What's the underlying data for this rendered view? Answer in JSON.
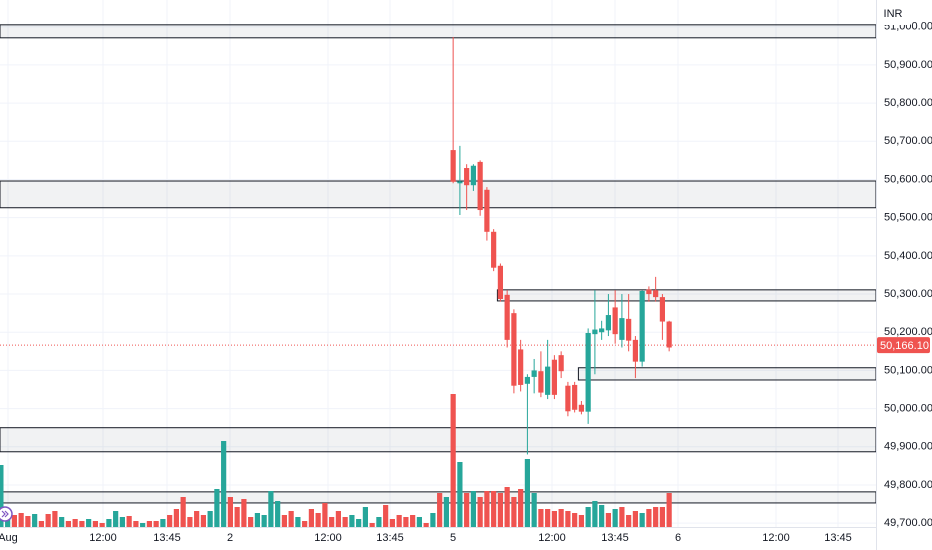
{
  "chart_data": {
    "type": "candlestick",
    "currency": "INR",
    "ylim": [
      49690,
      51070
    ],
    "yticks": [
      {
        "value": 51000,
        "label": "51,000.00"
      },
      {
        "value": 50900,
        "label": "50,900.00"
      },
      {
        "value": 50800,
        "label": "50,800.00"
      },
      {
        "value": 50700,
        "label": "50,700.00"
      },
      {
        "value": 50600,
        "label": "50,600.00"
      },
      {
        "value": 50500,
        "label": "50,500.00"
      },
      {
        "value": 50400,
        "label": "50,400.00"
      },
      {
        "value": 50300,
        "label": "50,300.00"
      },
      {
        "value": 50200,
        "label": "50,200.00"
      },
      {
        "value": 50100,
        "label": "50,100.00"
      },
      {
        "value": 50000,
        "label": "50,000.00"
      },
      {
        "value": 49900,
        "label": "49,900.00"
      },
      {
        "value": 49800,
        "label": "49,800.00"
      },
      {
        "value": 49700,
        "label": "49,700.00"
      }
    ],
    "xticks": [
      "Aug",
      "12:00",
      "13:45",
      "2",
      "12:00",
      "13:45",
      "5",
      "12:00",
      "13:45",
      "6",
      "12:00",
      "13:45"
    ],
    "last_price": {
      "value": 50166.1,
      "label": "50,166.10"
    },
    "up_color": "#26a69a",
    "down_color": "#ef5350",
    "grid": true,
    "candle_start": 67,
    "candles": [
      [
        50677,
        50973,
        50590,
        50594
      ],
      [
        50590,
        50688,
        50507,
        50595
      ],
      [
        50630,
        50640,
        50520,
        50585
      ],
      [
        50585,
        50640,
        50570,
        50636
      ],
      [
        50646,
        50650,
        50505,
        50520
      ],
      [
        50573,
        50580,
        50440,
        50463
      ],
      [
        50463,
        50470,
        50360,
        50369
      ],
      [
        50374,
        50380,
        50280,
        50287
      ],
      [
        50298,
        50310,
        50160,
        50180
      ],
      [
        50250,
        50260,
        50040,
        50060
      ],
      [
        50155,
        50180,
        50045,
        50062
      ],
      [
        50065,
        50090,
        49880,
        50083
      ],
      [
        50083,
        50130,
        50040,
        50100
      ],
      [
        50098,
        50150,
        50030,
        50042
      ],
      [
        50036,
        50180,
        50025,
        50110
      ],
      [
        50128,
        50140,
        50025,
        50036
      ],
      [
        50140,
        50150,
        50080,
        50098
      ],
      [
        50060,
        50070,
        49980,
        49993
      ],
      [
        50062,
        50070,
        49990,
        49997
      ],
      [
        50010,
        50020,
        49985,
        49992
      ],
      [
        49992,
        50210,
        49960,
        50198
      ],
      [
        50195,
        50310,
        50090,
        50207
      ],
      [
        50200,
        50230,
        50180,
        50210
      ],
      [
        50205,
        50300,
        50190,
        50245
      ],
      [
        50265,
        50310,
        50170,
        50195
      ],
      [
        50180,
        50300,
        50160,
        50237
      ],
      [
        50235,
        50300,
        50150,
        50178
      ],
      [
        50180,
        50190,
        50080,
        50123
      ],
      [
        50123,
        50310,
        50110,
        50308
      ],
      [
        50312,
        50320,
        50280,
        50300
      ],
      [
        50310,
        50345,
        50280,
        50292
      ],
      [
        50292,
        50300,
        50180,
        50228
      ],
      [
        50228,
        50230,
        50150,
        50160
      ]
    ],
    "volume": [
      62,
      15,
      12,
      14,
      11,
      13,
      6,
      13,
      16,
      10,
      6,
      8,
      6,
      8,
      6,
      4,
      8,
      16,
      10,
      11,
      6,
      4,
      6,
      6,
      8,
      12,
      18,
      30,
      10,
      16,
      12,
      16,
      38,
      86,
      30,
      20,
      28,
      10,
      14,
      12,
      36,
      26,
      12,
      16,
      10,
      6,
      18,
      14,
      24,
      10,
      16,
      10,
      12,
      8,
      20,
      4,
      10,
      22,
      8,
      12,
      10,
      12,
      10,
      4,
      14,
      34,
      30,
      133,
      65,
      34,
      36,
      30,
      36,
      36,
      34,
      40,
      30,
      38,
      68,
      34,
      18,
      18,
      16,
      18,
      16,
      14,
      12,
      20,
      26,
      22,
      14,
      18,
      20,
      12,
      16,
      14,
      18,
      20,
      20,
      34
    ],
    "volume_up": [
      true,
      true,
      false,
      false,
      false,
      true,
      false,
      false,
      false,
      true,
      false,
      false,
      false,
      true,
      false,
      false,
      true,
      true,
      true,
      false,
      false,
      true,
      false,
      false,
      true,
      false,
      false,
      false,
      false,
      false,
      false,
      true,
      true,
      true,
      false,
      false,
      false,
      false,
      true,
      true,
      true,
      true,
      false,
      false,
      true,
      false,
      false,
      false,
      false,
      false,
      false,
      false,
      true,
      true,
      true,
      false,
      true,
      false,
      false,
      false,
      false,
      false,
      true,
      false,
      true,
      false,
      true,
      false,
      true,
      false,
      true,
      false,
      false,
      false,
      false,
      false,
      false,
      false,
      true,
      true,
      false,
      false,
      false,
      false,
      false,
      false,
      false,
      true,
      true,
      true,
      false,
      true,
      false,
      false,
      false,
      true,
      false,
      false,
      false,
      false
    ],
    "zones": [
      {
        "top": 51005,
        "bottom": 50971,
        "start": 0
      },
      {
        "top": 50596,
        "bottom": 50526,
        "start": 0
      },
      {
        "top": 50311,
        "bottom": 50282,
        "start": 74
      },
      {
        "top": 50107,
        "bottom": 50075,
        "start": 86
      },
      {
        "top": 49950,
        "bottom": 49887,
        "start": 0
      },
      {
        "top": 49782,
        "bottom": 49753,
        "start": 0
      }
    ]
  }
}
